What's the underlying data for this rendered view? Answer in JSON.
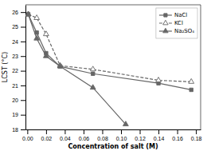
{
  "chart_data": {
    "type": "line",
    "x_label": "Concentration of salt (M)",
    "y_label": "LCST (°C)",
    "series": [
      {
        "name": "NaCl",
        "color": "#666666",
        "marker": "square",
        "line_style": "solid",
        "x": [
          0.001,
          0.01,
          0.02,
          0.035,
          0.07,
          0.14,
          0.175
        ],
        "values": [
          25.85,
          24.6,
          23.2,
          22.3,
          21.8,
          21.15,
          20.7
        ]
      },
      {
        "name": "KCl",
        "color": "#666666",
        "marker": "triangle-open",
        "line_style": "dashed",
        "x": [
          0.001,
          0.01,
          0.02,
          0.035,
          0.07,
          0.14,
          0.175
        ],
        "values": [
          25.85,
          25.6,
          24.5,
          22.35,
          22.1,
          21.35,
          21.25
        ]
      },
      {
        "name": "Na₂SO₄",
        "color": "#666666",
        "marker": "triangle",
        "line_style": "solid",
        "x": [
          0.001,
          0.01,
          0.02,
          0.035,
          0.07,
          0.105
        ],
        "values": [
          25.85,
          24.2,
          23.0,
          22.3,
          20.85,
          18.35
        ]
      }
    ],
    "xlim": [
      -0.002,
      0.185
    ],
    "ylim": [
      18,
      26.5
    ],
    "xticks": [
      {
        "value": 0.0,
        "label": "0.00"
      },
      {
        "value": 0.02,
        "label": "0.02"
      },
      {
        "value": 0.04,
        "label": "0.04"
      },
      {
        "value": 0.06,
        "label": "0.06"
      },
      {
        "value": 0.08,
        "label": "0.08"
      },
      {
        "value": 0.1,
        "label": "0.10"
      },
      {
        "value": 0.12,
        "label": "0.12"
      },
      {
        "value": 0.14,
        "label": "0.14"
      },
      {
        "value": 0.16,
        "label": "0.16"
      },
      {
        "value": 0.18,
        "label": "0.18"
      }
    ],
    "yticks": [
      18,
      19,
      20,
      21,
      22,
      23,
      24,
      25,
      26
    ],
    "grid": false,
    "legend": "upper right"
  }
}
